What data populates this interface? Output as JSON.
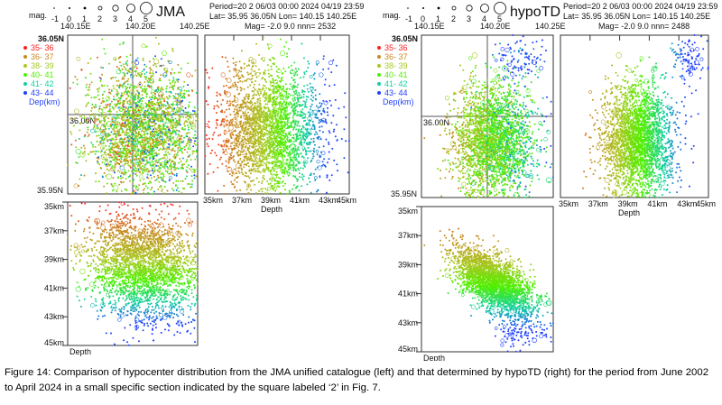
{
  "figure": {
    "caption": "Figure 14: Comparison of hypocenter distribution from the JMA unified catalogue (left) and that determined by hypoTD (right) for the period from June 2002 to April 2024 in a small specific section indicated by the square labeled ‘2’ in Fig. 7."
  },
  "chart_data": [
    {
      "type": "scatter",
      "title": "JMA",
      "period": "Period=20 2 06/03 00:00  2024 04/19 23:59",
      "lat_lon": "Lat= 35.95 36.05N  Lon= 140.15 140.25E",
      "mag_nnn": "Mag= -2.0  9.0  nnn=   2532",
      "nnn": 2532,
      "lon_range": [
        140.15,
        140.25
      ],
      "lat_range": [
        35.95,
        36.05
      ],
      "depth_range_km": [
        35,
        45
      ]
    },
    {
      "type": "scatter",
      "title": "hypoTD",
      "period": "Period=20 2 06/03 00:00  2024 04/19 23:59",
      "lat_lon": "Lat= 35.95 36.05N  Lon= 140.15 140.25E",
      "mag_nnn": "Mag= -2.0  9.0  nnn=   2488",
      "nnn": 2488,
      "lon_range": [
        140.15,
        140.25
      ],
      "lat_range": [
        35.95,
        36.05
      ],
      "depth_range_km": [
        35,
        45
      ]
    }
  ],
  "axes": {
    "lon_ticks": [
      "140.15E",
      "140.20E",
      "140.25E"
    ],
    "lat_ticks": [
      "36.05N",
      "36.00N",
      "35.95N"
    ],
    "depth_ticks": [
      "35km",
      "37km",
      "39km",
      "41km",
      "43km",
      "45km"
    ],
    "depth_label": "Depth"
  },
  "mag_scale": {
    "label": "mag.",
    "values": [
      "-1",
      "0",
      "1",
      "2",
      "3",
      "4",
      "5"
    ]
  },
  "depth_legend": {
    "items": [
      {
        "label": "35- 36",
        "color": "#ff2020"
      },
      {
        "label": "36- 37",
        "color": "#c88a20"
      },
      {
        "label": "38- 39",
        "color": "#a8c820"
      },
      {
        "label": "40- 41",
        "color": "#50f000"
      },
      {
        "label": "41- 42",
        "color": "#10d0a0"
      },
      {
        "label": "43- 44",
        "color": "#2040ff"
      }
    ],
    "unit": "Dep(km)"
  }
}
